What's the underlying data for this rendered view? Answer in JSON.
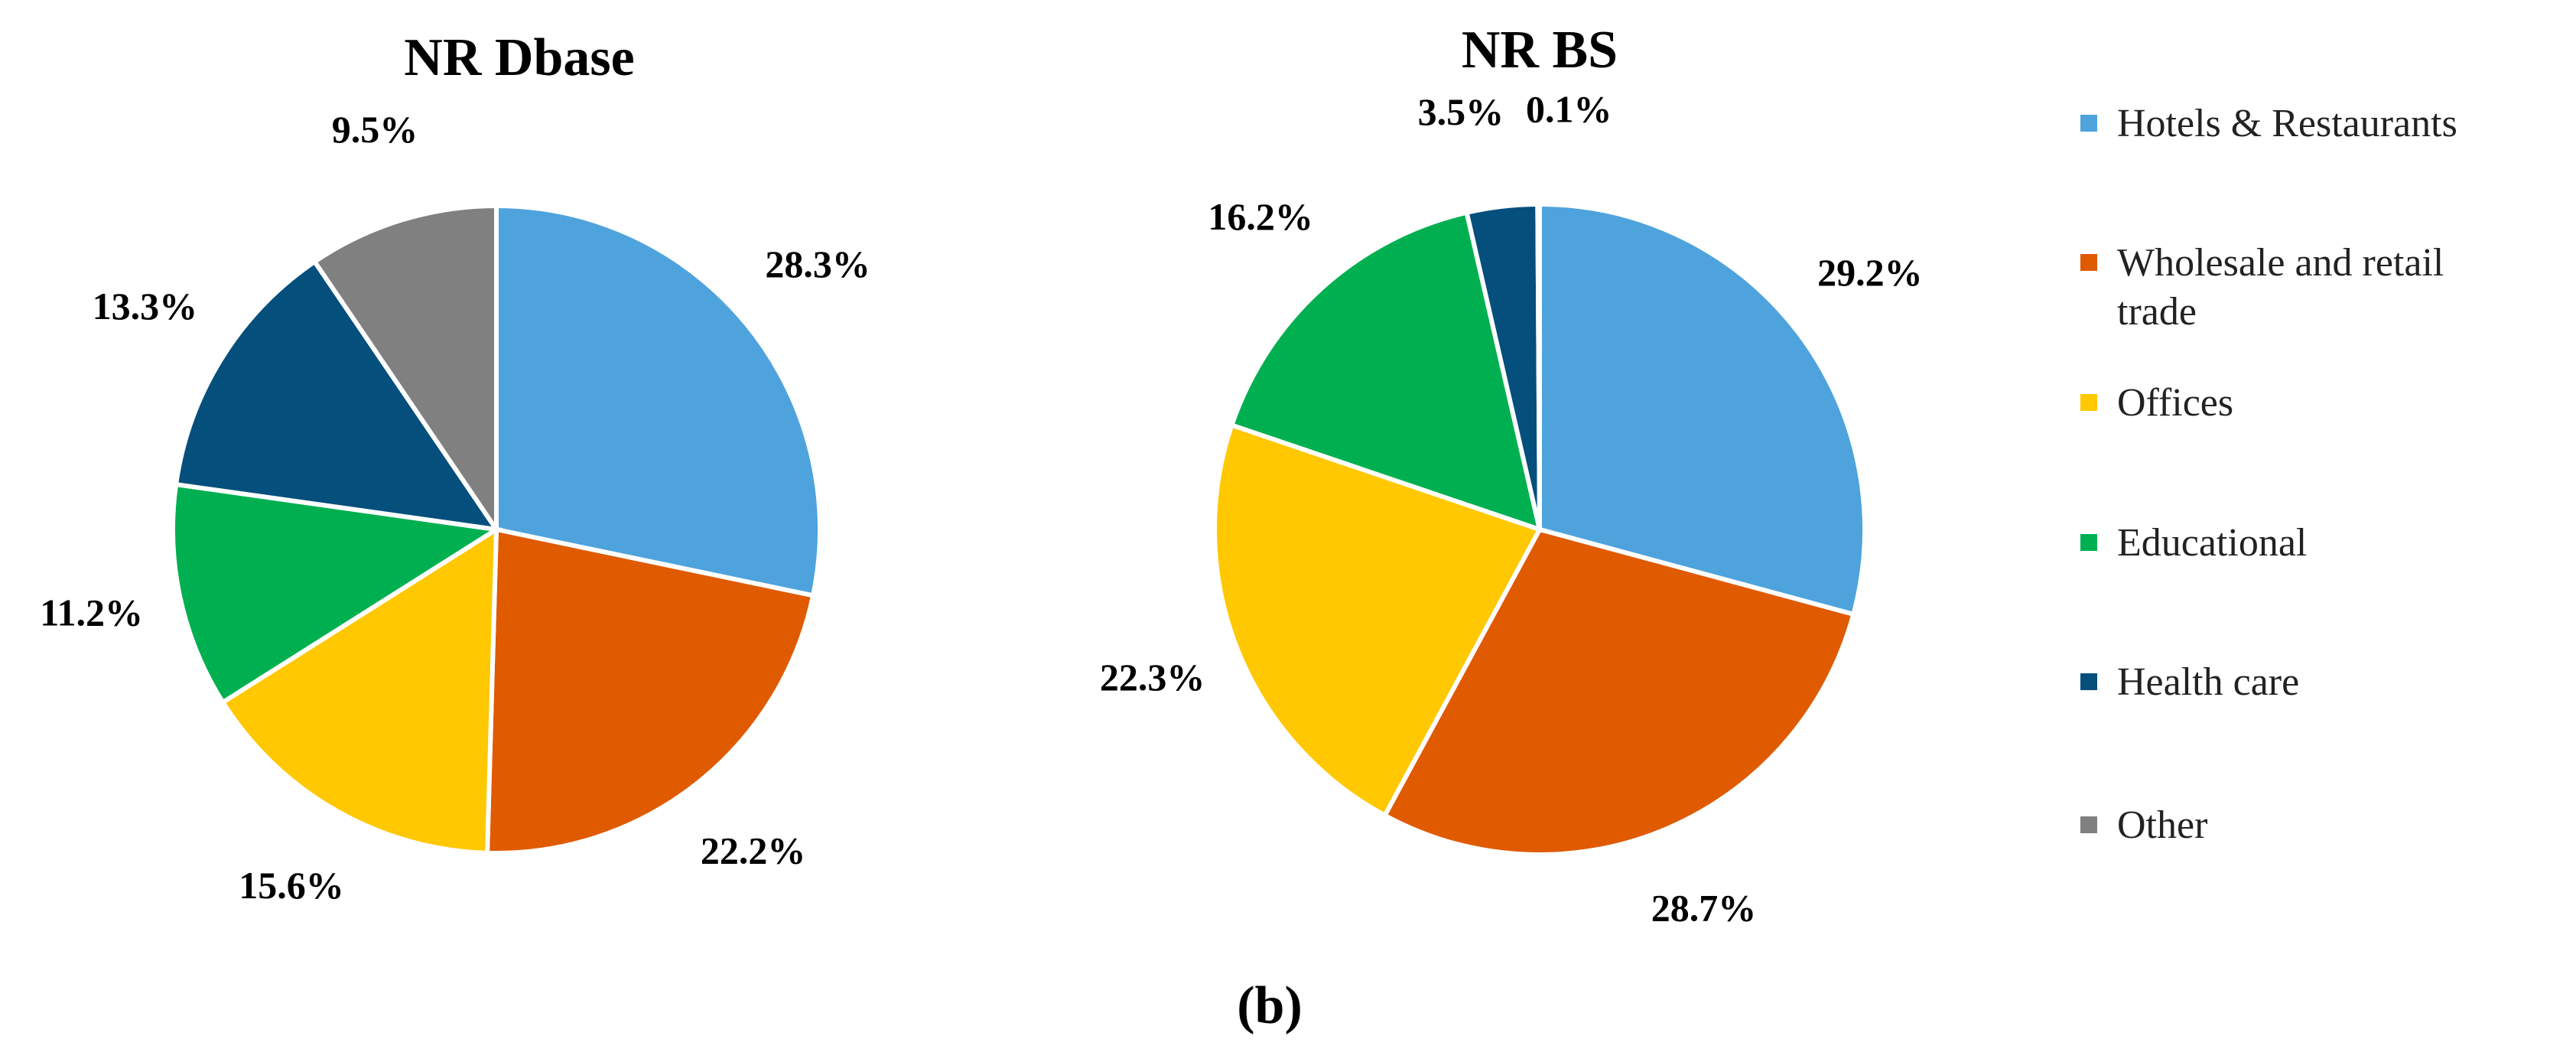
{
  "chart_data": [
    {
      "type": "pie",
      "title": "NR Dbase",
      "categories": [
        "Hotels & Restaurants",
        "Wholesale and retail trade",
        "Offices",
        "Educational",
        "Health care",
        "Other"
      ],
      "values": [
        28.3,
        22.2,
        15.6,
        11.2,
        13.3,
        9.5
      ],
      "value_labels": [
        "28.3%",
        "22.2%",
        "15.6%",
        "11.2%",
        "13.3%",
        "9.5%"
      ],
      "colors": [
        "#4ea3dd",
        "#e05a00",
        "#ffc800",
        "#00b050",
        "#044f7c",
        "#808080"
      ]
    },
    {
      "type": "pie",
      "title": "NR BS",
      "categories": [
        "Hotels & Restaurants",
        "Wholesale and retail trade",
        "Offices",
        "Educational",
        "Health care",
        "Other"
      ],
      "values": [
        29.2,
        28.7,
        22.3,
        16.2,
        3.5,
        0.1
      ],
      "value_labels": [
        "29.2%",
        "28.7%",
        "22.3%",
        "16.2%",
        "3.5%",
        "0.1%"
      ],
      "colors": [
        "#4ea3dd",
        "#e05a00",
        "#ffc800",
        "#00b050",
        "#044f7c",
        "#808080"
      ]
    }
  ],
  "caption": "(b)"
}
